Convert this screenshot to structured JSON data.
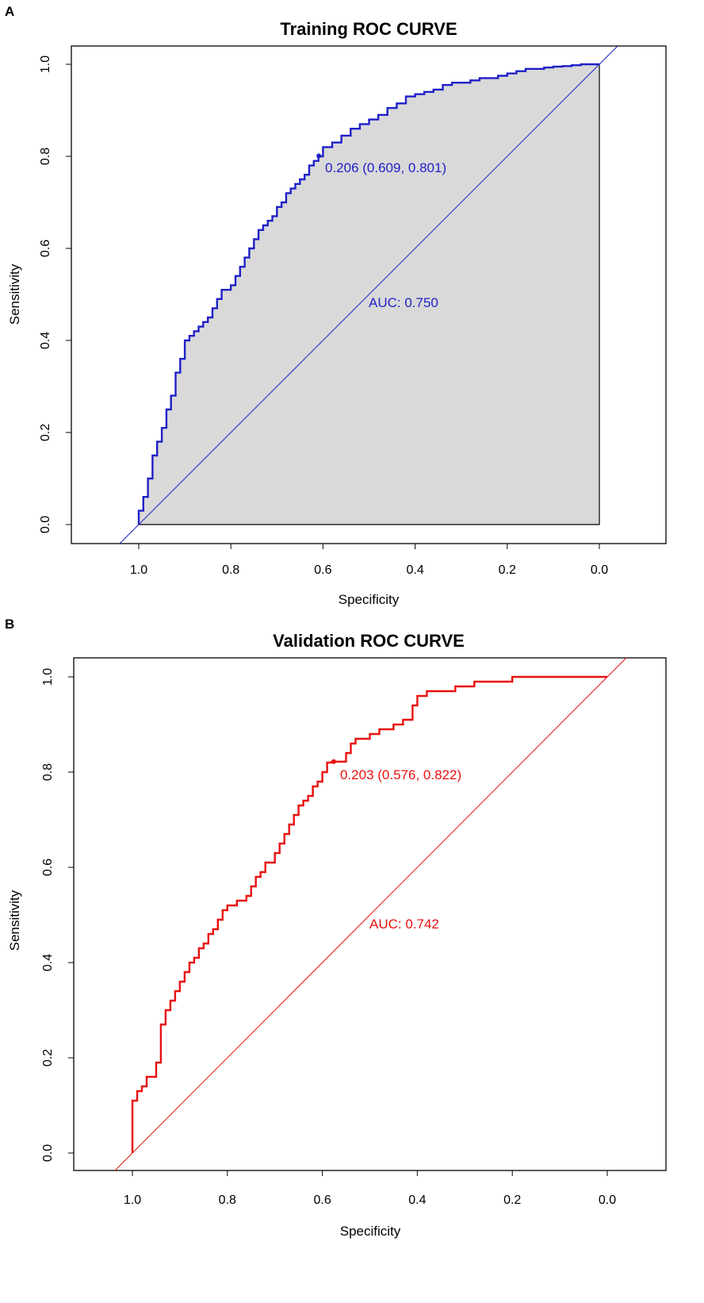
{
  "chart_data": [
    {
      "type": "line",
      "panel_label": "A",
      "title": "Training ROC CURVE",
      "xlabel": "Specificity",
      "ylabel": "Sensitivity",
      "xlim": [
        1.0,
        0.0
      ],
      "ylim": [
        0.0,
        1.0
      ],
      "x_axis_reversed": true,
      "xticks": [
        "1.0",
        "0.8",
        "0.6",
        "0.4",
        "0.2",
        "0.0"
      ],
      "yticks": [
        "0.0",
        "0.2",
        "0.4",
        "0.6",
        "0.8",
        "1.0"
      ],
      "color": "#1f1fc8",
      "auc_polygon_filled": true,
      "fill_color": "#d9d9d9",
      "threshold_label": "0.206 (0.609, 0.801)",
      "threshold_point": {
        "specificity": 0.609,
        "sensitivity": 0.801
      },
      "auc_label": "AUC: 0.750",
      "auc": 0.75,
      "series": [
        {
          "name": "ROC",
          "specificity": [
            1.0,
            0.99,
            0.98,
            0.97,
            0.96,
            0.95,
            0.94,
            0.93,
            0.92,
            0.91,
            0.9,
            0.89,
            0.88,
            0.87,
            0.86,
            0.85,
            0.84,
            0.83,
            0.82,
            0.81,
            0.8,
            0.79,
            0.78,
            0.77,
            0.76,
            0.75,
            0.74,
            0.73,
            0.72,
            0.71,
            0.7,
            0.69,
            0.68,
            0.67,
            0.66,
            0.65,
            0.64,
            0.63,
            0.62,
            0.61,
            0.609,
            0.6,
            0.58,
            0.56,
            0.54,
            0.52,
            0.5,
            0.48,
            0.46,
            0.44,
            0.42,
            0.4,
            0.38,
            0.36,
            0.34,
            0.32,
            0.3,
            0.28,
            0.26,
            0.24,
            0.22,
            0.2,
            0.18,
            0.16,
            0.14,
            0.12,
            0.1,
            0.08,
            0.06,
            0.04,
            0.02,
            0.0
          ],
          "sensitivity": [
            0.0,
            0.03,
            0.06,
            0.1,
            0.15,
            0.18,
            0.21,
            0.25,
            0.28,
            0.33,
            0.36,
            0.4,
            0.41,
            0.42,
            0.43,
            0.44,
            0.45,
            0.47,
            0.49,
            0.51,
            0.51,
            0.52,
            0.54,
            0.56,
            0.58,
            0.6,
            0.62,
            0.64,
            0.65,
            0.66,
            0.67,
            0.69,
            0.7,
            0.72,
            0.73,
            0.74,
            0.75,
            0.76,
            0.78,
            0.79,
            0.801,
            0.8,
            0.82,
            0.83,
            0.845,
            0.86,
            0.87,
            0.88,
            0.89,
            0.905,
            0.915,
            0.93,
            0.935,
            0.94,
            0.945,
            0.955,
            0.96,
            0.96,
            0.965,
            0.97,
            0.97,
            0.975,
            0.98,
            0.985,
            0.99,
            0.99,
            0.993,
            0.995,
            0.996,
            0.998,
            1.0,
            1.0
          ]
        }
      ]
    },
    {
      "type": "line",
      "panel_label": "B",
      "title": "Validation ROC CURVE",
      "xlabel": "Specificity",
      "ylabel": "Sensitivity",
      "xlim": [
        1.0,
        0.0
      ],
      "ylim": [
        0.0,
        1.0
      ],
      "x_axis_reversed": true,
      "xticks": [
        "1.0",
        "0.8",
        "0.6",
        "0.4",
        "0.2",
        "0.0"
      ],
      "yticks": [
        "0.0",
        "0.2",
        "0.4",
        "0.6",
        "0.8",
        "1.0"
      ],
      "color": "#e81010",
      "auc_polygon_filled": false,
      "threshold_label": "0.203 (0.576, 0.822)",
      "threshold_point": {
        "specificity": 0.576,
        "sensitivity": 0.822
      },
      "auc_label": "AUC: 0.742",
      "auc": 0.742,
      "series": [
        {
          "name": "ROC",
          "specificity": [
            1.0,
            1.0,
            0.99,
            0.98,
            0.97,
            0.95,
            0.94,
            0.93,
            0.93,
            0.92,
            0.91,
            0.9,
            0.89,
            0.88,
            0.87,
            0.86,
            0.85,
            0.84,
            0.83,
            0.82,
            0.81,
            0.8,
            0.79,
            0.78,
            0.76,
            0.75,
            0.74,
            0.73,
            0.72,
            0.7,
            0.69,
            0.68,
            0.67,
            0.66,
            0.65,
            0.64,
            0.63,
            0.62,
            0.61,
            0.6,
            0.59,
            0.58,
            0.576,
            0.55,
            0.54,
            0.53,
            0.52,
            0.5,
            0.48,
            0.45,
            0.43,
            0.41,
            0.4,
            0.39,
            0.38,
            0.35,
            0.32,
            0.3,
            0.28,
            0.24,
            0.2,
            0.15,
            0.1,
            0.05,
            0.0
          ],
          "sensitivity": [
            0.0,
            0.06,
            0.11,
            0.13,
            0.14,
            0.16,
            0.19,
            0.27,
            0.29,
            0.3,
            0.32,
            0.34,
            0.36,
            0.38,
            0.4,
            0.41,
            0.43,
            0.44,
            0.46,
            0.47,
            0.49,
            0.51,
            0.52,
            0.52,
            0.53,
            0.54,
            0.56,
            0.58,
            0.59,
            0.61,
            0.63,
            0.65,
            0.67,
            0.69,
            0.71,
            0.73,
            0.74,
            0.75,
            0.77,
            0.78,
            0.8,
            0.82,
            0.822,
            0.822,
            0.84,
            0.86,
            0.87,
            0.87,
            0.88,
            0.89,
            0.9,
            0.91,
            0.94,
            0.96,
            0.96,
            0.97,
            0.97,
            0.98,
            0.98,
            0.99,
            0.99,
            1.0,
            1.0,
            1.0,
            1.0
          ]
        }
      ]
    }
  ]
}
